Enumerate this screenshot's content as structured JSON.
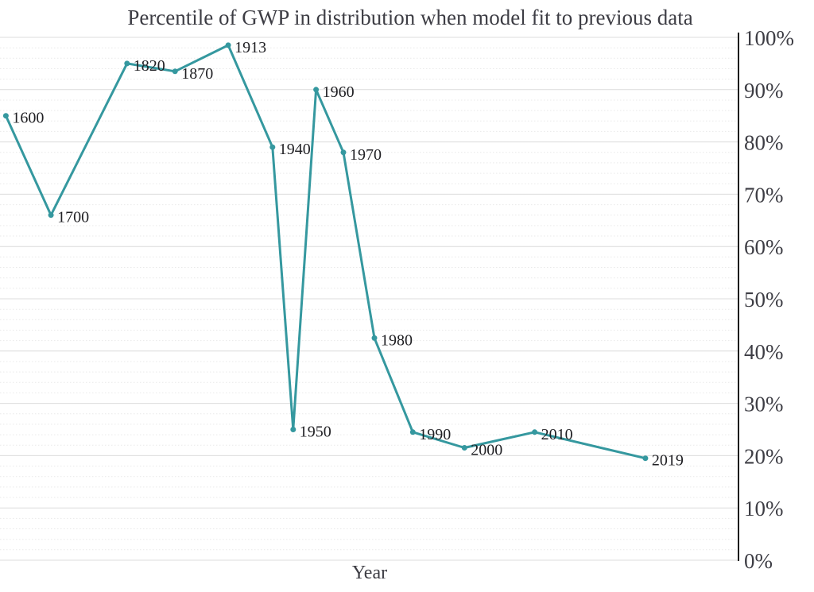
{
  "chart_data": {
    "type": "line",
    "title": "Percentile of GWP in distribution when model fit to previous data",
    "xlabel": "Year",
    "ylabel": "",
    "ylim": [
      0,
      100
    ],
    "x_tick_labels_shown": false,
    "grid": {
      "major_step": 10,
      "minor_step": 2,
      "major_on": true,
      "minor_on": true
    },
    "legend": "none",
    "y_ticks": [
      {
        "value": 100,
        "label": "100%"
      },
      {
        "value": 90,
        "label": "90%"
      },
      {
        "value": 80,
        "label": "80%"
      },
      {
        "value": 70,
        "label": "70%"
      },
      {
        "value": 60,
        "label": "60%"
      },
      {
        "value": 50,
        "label": "50%"
      },
      {
        "value": 40,
        "label": "40%"
      },
      {
        "value": 30,
        "label": "30%"
      },
      {
        "value": 20,
        "label": "20%"
      },
      {
        "value": 10,
        "label": "10%"
      },
      {
        "value": 0,
        "label": "0%"
      }
    ],
    "series": [
      {
        "name": "Percentile of GWP",
        "points": [
          {
            "year": "1600",
            "percentile": 85.0,
            "x_frac": 0.008
          },
          {
            "year": "1700",
            "percentile": 66.0,
            "x_frac": 0.069
          },
          {
            "year": "1820",
            "percentile": 95.0,
            "x_frac": 0.172
          },
          {
            "year": "1870",
            "percentile": 93.5,
            "x_frac": 0.237
          },
          {
            "year": "1913",
            "percentile": 98.5,
            "x_frac": 0.309
          },
          {
            "year": "1940",
            "percentile": 79.0,
            "x_frac": 0.369
          },
          {
            "year": "1950",
            "percentile": 25.0,
            "x_frac": 0.397
          },
          {
            "year": "1960",
            "percentile": 90.0,
            "x_frac": 0.428
          },
          {
            "year": "1970",
            "percentile": 78.0,
            "x_frac": 0.465
          },
          {
            "year": "1980",
            "percentile": 42.5,
            "x_frac": 0.507
          },
          {
            "year": "1990",
            "percentile": 24.5,
            "x_frac": 0.559
          },
          {
            "year": "2000",
            "percentile": 21.5,
            "x_frac": 0.629
          },
          {
            "year": "2010",
            "percentile": 24.5,
            "x_frac": 0.724
          },
          {
            "year": "2019",
            "percentile": 19.5,
            "x_frac": 0.874
          }
        ]
      }
    ],
    "colors": {
      "line": "#35989f",
      "marker": "#35989f",
      "axis": "#1b1b1b",
      "title_text": "#3d3d44",
      "tick_text": "#3d3d44",
      "point_label_text": "#202024",
      "grid_major": "#dcdcdc",
      "grid_minor": "#e9e9e9",
      "background": "#ffffff"
    }
  }
}
